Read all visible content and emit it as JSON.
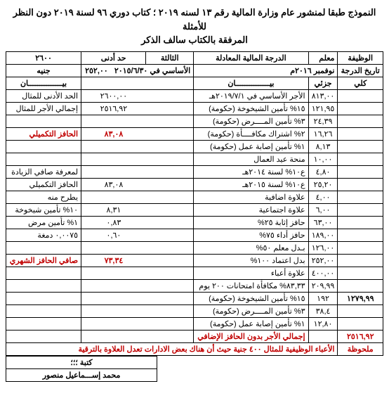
{
  "title": {
    "line1": "النموذج طبقا لمنشور عام وزارة المالية رقم ١٣ لسنه ٢٠١٩ ؛ كتاب دوري ٩٦ لسنة ٢٠١٩ دون النظر للأمثلة",
    "line2": "المرفقة بالكتاب سالف الذكر"
  },
  "header": {
    "job_label": "الوظيفة",
    "job_value": "معلم",
    "grade_label": "الدرجة المالية المعادلة",
    "grade_value": "الثالثة",
    "min_label": "حد أدنى",
    "min_value": "٢٦٠٠",
    "date_label": "تاريخ الدرجة",
    "date_value": "نوفمبر ٢٠١٦م",
    "basic_label": "الأساسي في ٢٠١٥/٦/٣٠",
    "basic_value": "٢٥٢,٠٠",
    "unit": "جنيه"
  },
  "col_headers": {
    "total": "كلي",
    "partial": "جزئي",
    "desc": "بيـــــــــــــــان",
    "desc2": "بيـــــــــــــــان"
  },
  "rows_right": [
    {
      "t": "",
      "p": "٨١٣,٠٠",
      "d": "الأجر الأساسي في ٢٠١٩/٧/١هـ"
    },
    {
      "t": "",
      "p": "١٢١,٩٥",
      "d": "١٥% تأمين الشيخوخة (حكومة)"
    },
    {
      "t": "",
      "p": "٢٤,٣٩",
      "d": "٣% تأمين المــــرض (حكومة)"
    },
    {
      "t": "",
      "p": "١٦,٢٦",
      "d": "٢% اشتراك مكافــــأة (حكومة)"
    },
    {
      "t": "",
      "p": "٨,١٣",
      "d": "١% تأمين إصابة عمل (حكومة)"
    },
    {
      "t": "",
      "p": "١٠,٠٠",
      "d": "منحة عيد العمال"
    },
    {
      "t": "",
      "p": "٤,٨٠",
      "d": "ع١٠% لسنة ٢٠١٤هـ"
    },
    {
      "t": "",
      "p": "٢٥,٢٠",
      "d": "ع١٠% لسنة ٢٠١٥هـ"
    },
    {
      "t": "",
      "p": "٤,٠٠",
      "d": "علاوة اضافية"
    },
    {
      "t": "",
      "p": "٦,٠٠",
      "d": "علاوة اجتماعية"
    },
    {
      "t": "",
      "p": "٦٣,٠٠",
      "d": "حافز إثابة ٢٥%"
    },
    {
      "t": "",
      "p": "١٨٩,٠٠",
      "d": "حافز أداء ٧٥%"
    },
    {
      "t": "",
      "p": "١٢٦,٠٠",
      "d": "بـدل معلم ٥٠%"
    },
    {
      "t": "",
      "p": "٢٥٢,٠٠",
      "d": "بدل اعتماد ١٠٠%"
    },
    {
      "t": "",
      "p": "٤٠٠,٠٠",
      "d": "علاوة أعباء"
    },
    {
      "t": "",
      "p": "٢٠٩,٩٩",
      "d": "٨٣,٣٣% مكافأة امتحانات ٢٠٠ يوم"
    },
    {
      "t": "١٢٧٩,٩٩",
      "p": "١٩٢",
      "d": "١٥% تأمين الشيخوخة (حكومة)"
    },
    {
      "t": "",
      "p": "٣٨,٤",
      "d": "٣% تأمين المــــرض (حكومة)"
    },
    {
      "t": "",
      "p": "١٢,٨٠",
      "d": "١% تأمين إصابة عمل (حكومة)"
    }
  ],
  "total_row": {
    "t": "٢٥١٦,٩٢",
    "d": "إجمالي الأجر بدون الحافز الإضافي"
  },
  "rows_left": [
    {
      "v": "٢٦٠٠,٠٠",
      "d": "الحد الأدنى للمثال"
    },
    {
      "v": "٢٥١٦,٩٢",
      "d": "إجمالي الأجر للمثال"
    },
    {
      "v": "",
      "d": ""
    },
    {
      "v": "٨٣,٠٨",
      "d": "الحافز التكميلي",
      "red": true
    },
    {
      "v": "",
      "d": ""
    },
    {
      "v": "",
      "d": ""
    },
    {
      "v": "",
      "d": "لمعرفة صافي الزيادة"
    },
    {
      "v": "٨٣,٠٨",
      "d": "الحافز التكميلي"
    },
    {
      "v": "",
      "d": "يطرح منه"
    },
    {
      "v": "٨,٣١",
      "d": "١٠% تأمين شيخوخة"
    },
    {
      "v": "٠,٨٣",
      "d": "١% تأمين مرض"
    },
    {
      "v": "٠,٦٠",
      "d": "٠,٠٠٧٥ دمغة"
    },
    {
      "v": "",
      "d": ""
    },
    {
      "v": "٧٣,٣٤",
      "d": "صافي الحافز الشهري",
      "red": true
    },
    {
      "v": "",
      "d": ""
    },
    {
      "v": "",
      "d": ""
    },
    {
      "v": "",
      "d": ""
    },
    {
      "v": "",
      "d": ""
    },
    {
      "v": "",
      "d": ""
    }
  ],
  "note": {
    "label": "ملحوظة",
    "text": "الأعباء الوظيفية للمثال ٤٠٠ جنية حيث أن هناك بعض الادارات تعدل العلاوة بالترقية"
  },
  "signature": {
    "l1": "كتبة ؛؛؛",
    "l2": "محمد إســـماعيل منصور"
  }
}
